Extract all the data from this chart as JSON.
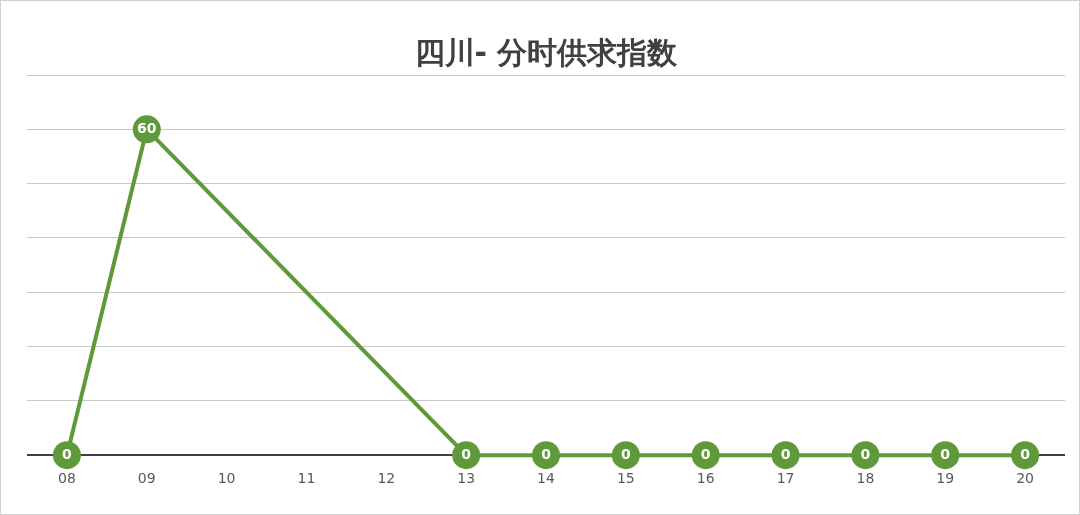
{
  "chart_data": {
    "type": "line",
    "title": "四川- 分时供求指数",
    "categories": [
      "08",
      "09",
      "10",
      "11",
      "12",
      "13",
      "14",
      "15",
      "16",
      "17",
      "18",
      "19",
      "20"
    ],
    "series": [
      {
        "color": "#5f9a3a",
        "values": [
          0,
          60,
          null,
          null,
          null,
          0,
          0,
          0,
          0,
          0,
          0,
          0,
          0
        ]
      }
    ],
    "ylim": [
      0,
      70
    ],
    "yticks": [
      {
        "value": 0,
        "label": null
      },
      {
        "value": 10,
        "label": null
      },
      {
        "value": 20,
        "label": null
      },
      {
        "value": 30,
        "label": null
      },
      {
        "value": 40,
        "label": null
      },
      {
        "value": 50,
        "label": null
      },
      {
        "value": 60,
        "label": null
      },
      {
        "value": 70,
        "label": null
      }
    ],
    "grid": "y",
    "tick_labels": "x",
    "data_labels": true,
    "marker": "circle",
    "line_style": "solid"
  }
}
